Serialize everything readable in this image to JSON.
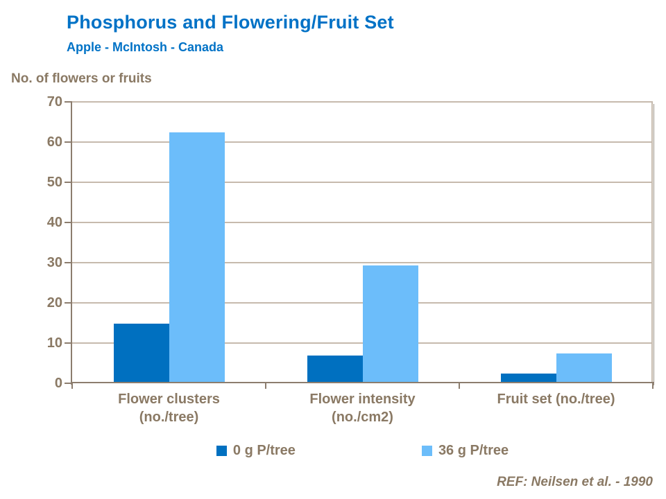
{
  "slide": {
    "title": "Phosphorus and Flowering/Fruit Set",
    "subtitle": "Apple - McIntosh - Canada",
    "axis_title": "No. of flowers or fruits",
    "reference": "REF: Neilsen et al. - 1990"
  },
  "colors": {
    "title_blue": "#0072C6",
    "text_brown": "#8A7964",
    "axis_line": "#8C7D6E",
    "gridline": "#C6BAAD",
    "plot_shadow": "#9A9186"
  },
  "chart_data": {
    "type": "bar",
    "title": "Phosphorus and Flowering/Fruit Set",
    "subtitle": "Apple - McIntosh - Canada",
    "xlabel": "",
    "ylabel": "No. of flowers or fruits",
    "categories": [
      "Flower clusters\n(no./tree)",
      "Flower intensity\n(no./cm2)",
      "Fruit set (no./tree)"
    ],
    "series": [
      {
        "name": "0 g P/tree",
        "color": "#0070C0",
        "values": [
          14.5,
          6.5,
          2
        ]
      },
      {
        "name": "36 g P/tree",
        "color": "#6CBDFA",
        "values": [
          62,
          29,
          7
        ]
      }
    ],
    "ylim": [
      0,
      70
    ],
    "ytick_step": 10,
    "grid": true,
    "legend_position": "bottom"
  }
}
